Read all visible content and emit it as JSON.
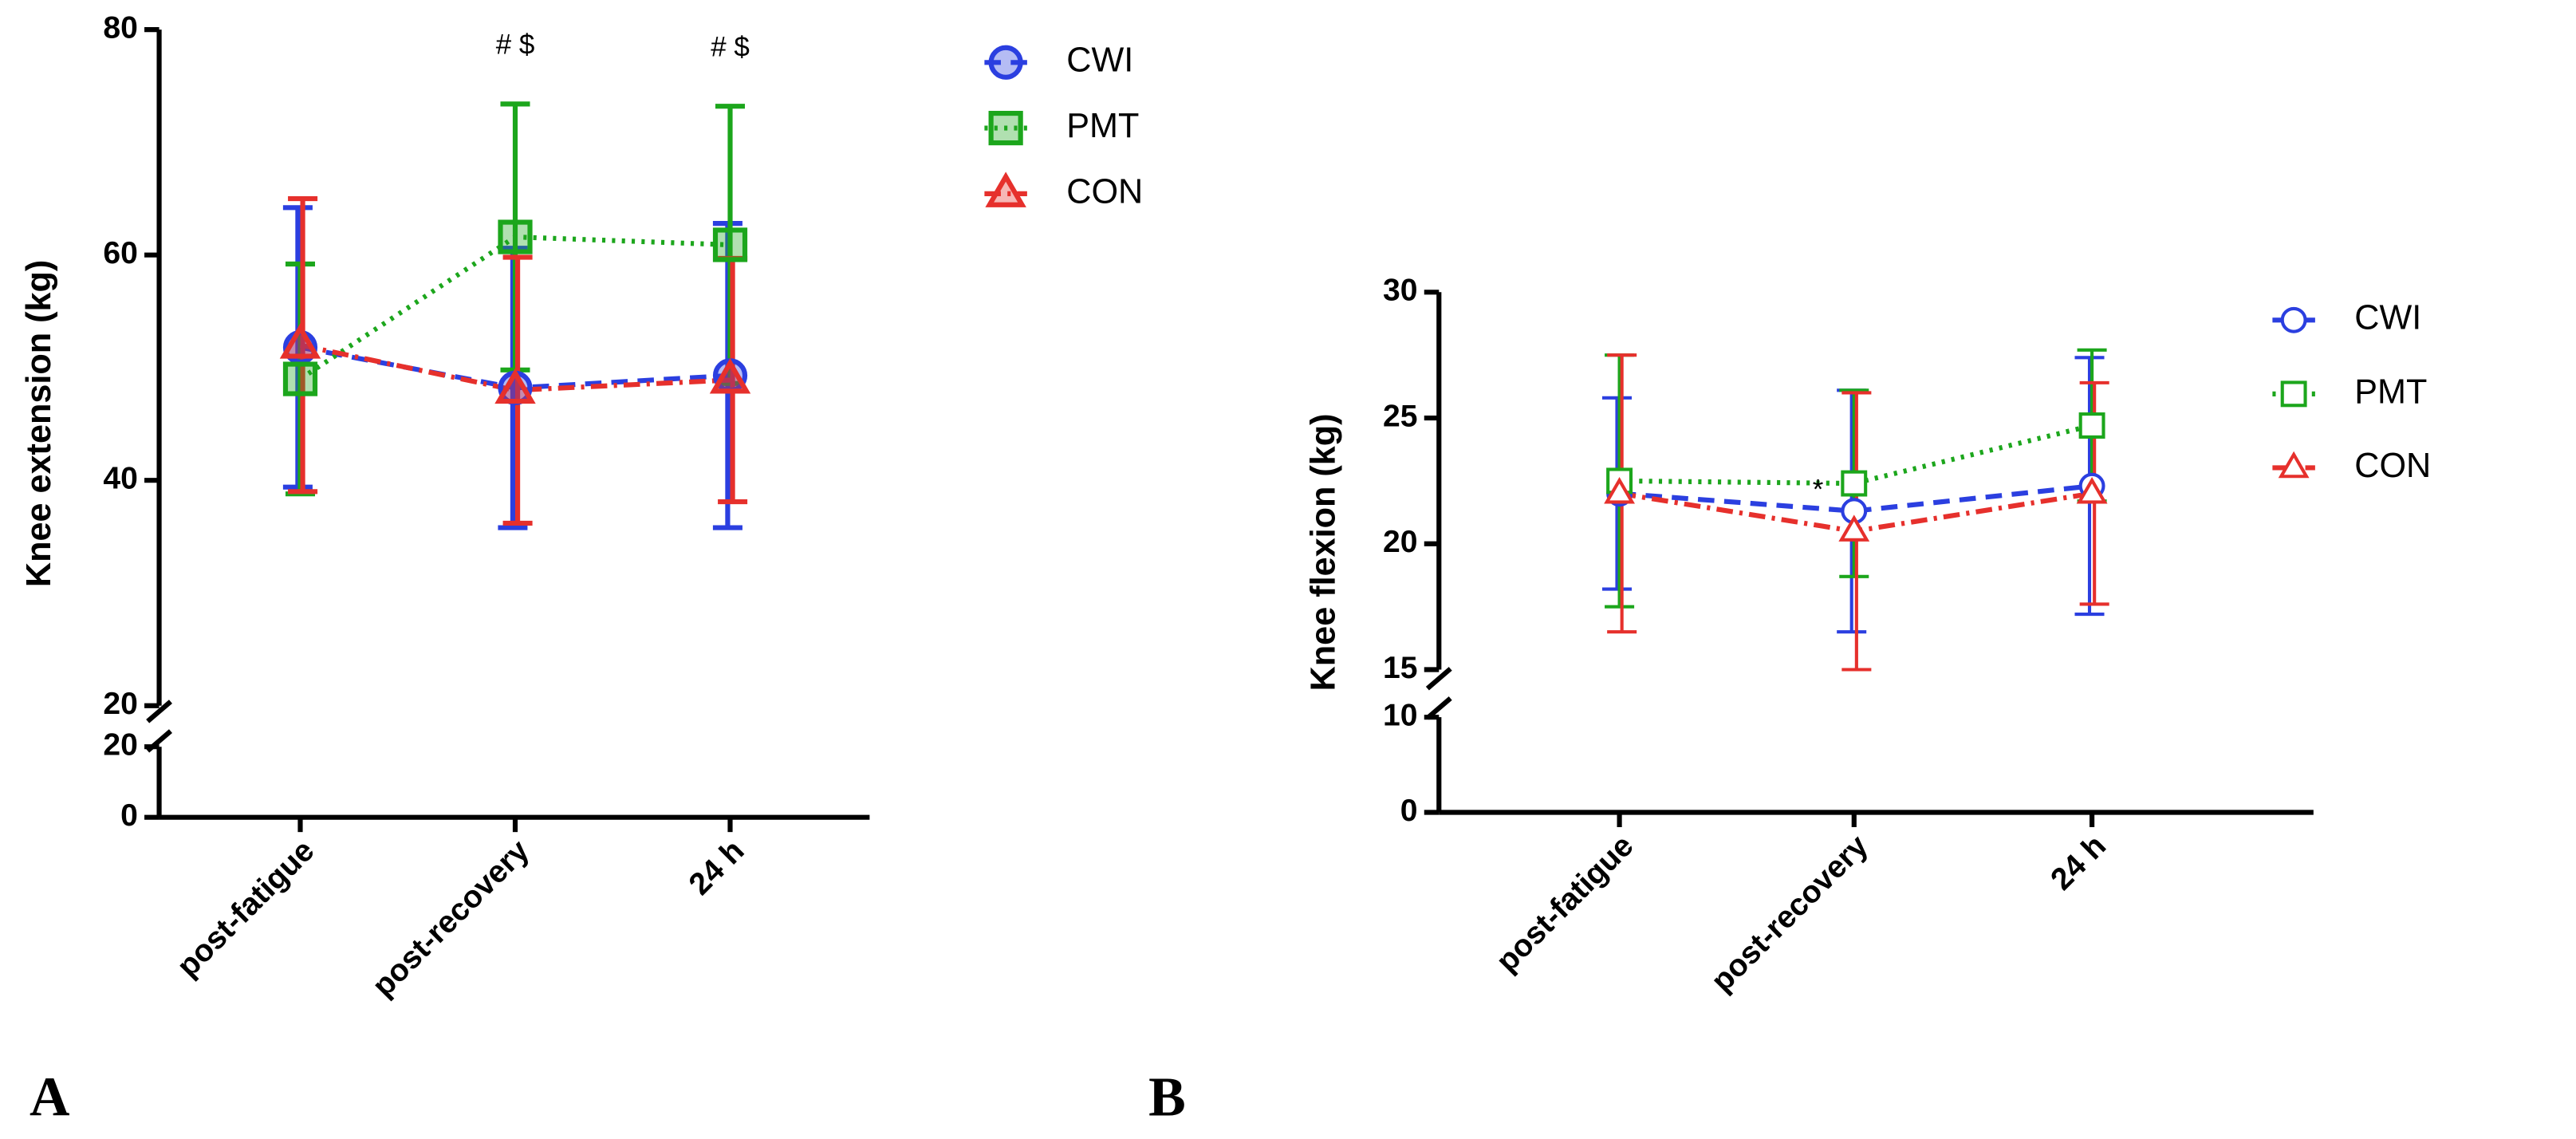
{
  "chart_data": [
    {
      "type": "line",
      "panel_label": "A",
      "y_label": "Knee extension (kg)",
      "categories": [
        "post-fatigue",
        "post-recovery",
        "24 h"
      ],
      "ylim": [
        20,
        80
      ],
      "yticks": [
        20,
        40,
        60,
        80
      ],
      "ylim_lower": [
        0,
        20
      ],
      "yticks_lower": [
        0,
        20
      ],
      "series": [
        {
          "name": "CWI",
          "color": "#2b3fe0",
          "marker": "circle",
          "line_style": "dashed",
          "values": [
            51.8,
            48.2,
            49.3
          ],
          "errors": [
            12.4,
            12.4,
            13.5
          ]
        },
        {
          "name": "PMT",
          "color": "#1ca61c",
          "marker": "square",
          "line_style": "dotted",
          "values": [
            49.0,
            61.6,
            60.9
          ],
          "errors": [
            10.2,
            11.8,
            12.3
          ]
        },
        {
          "name": "CON",
          "color": "#e6302c",
          "marker": "triangle",
          "line_style": "dashdot",
          "values": [
            52.0,
            48.0,
            48.9
          ],
          "errors": [
            13.0,
            11.8,
            10.8
          ]
        }
      ],
      "annotations": [
        {
          "text": "# $",
          "x": "post-recovery"
        },
        {
          "text": "# $",
          "x": "24 h"
        }
      ]
    },
    {
      "type": "line",
      "panel_label": "B",
      "y_label": "Knee flexion (kg)",
      "categories": [
        "post-fatigue",
        "post-recovery",
        "24 h"
      ],
      "ylim": [
        15,
        30
      ],
      "yticks": [
        15,
        20,
        25,
        30
      ],
      "ylim_lower": [
        0,
        10
      ],
      "yticks_lower": [
        0,
        10
      ],
      "series": [
        {
          "name": "CWI",
          "color": "#2b3fe0",
          "marker": "circle",
          "line_style": "dashed",
          "values": [
            22.0,
            21.3,
            22.3
          ],
          "errors": [
            3.8,
            4.8,
            5.1
          ]
        },
        {
          "name": "PMT",
          "color": "#1ca61c",
          "marker": "square",
          "line_style": "dotted",
          "values": [
            22.5,
            22.4,
            24.7
          ],
          "errors": [
            5.0,
            3.7,
            3.0
          ]
        },
        {
          "name": "CON",
          "color": "#e6302c",
          "marker": "triangle",
          "line_style": "dashdot",
          "values": [
            22.0,
            20.5,
            22.0
          ],
          "errors": [
            5.5,
            5.5,
            4.4
          ]
        }
      ],
      "annotations": [
        {
          "text": "*",
          "x": "post-recovery",
          "series": "CWI"
        }
      ]
    }
  ]
}
